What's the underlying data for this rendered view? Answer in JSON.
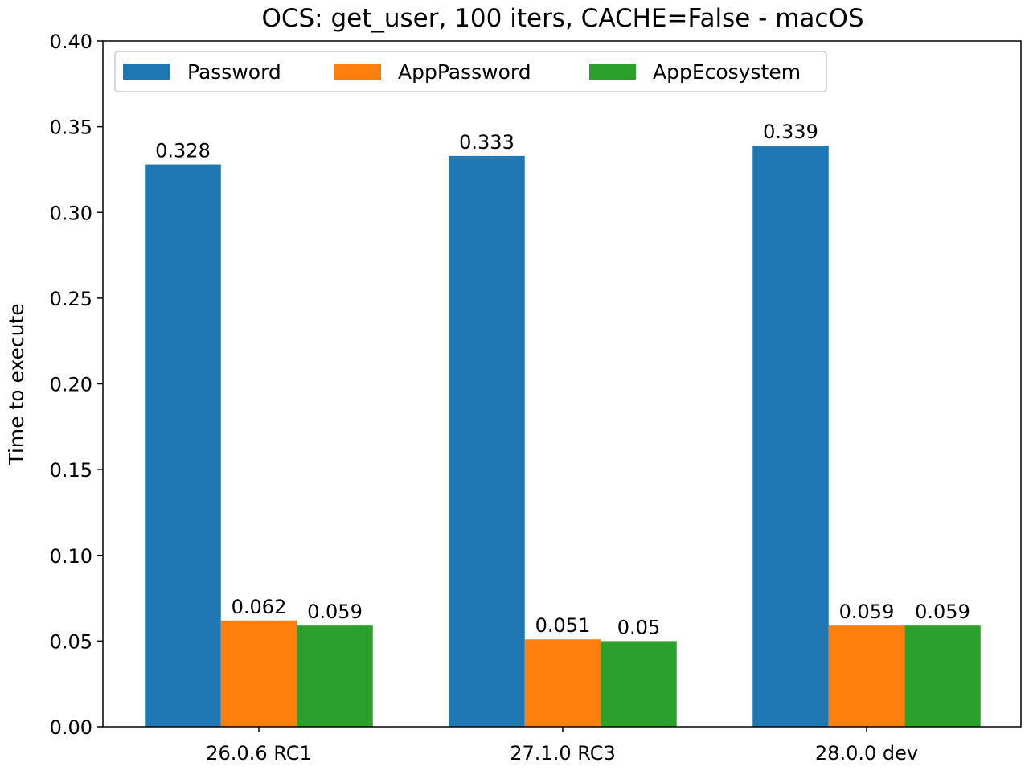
{
  "chart_data": {
    "type": "bar",
    "title": "OCS: get_user, 100 iters, CACHE=False - macOS",
    "xlabel": "",
    "ylabel": "Time to execute",
    "categories": [
      "26.0.6 RC1",
      "27.1.0 RC3",
      "28.0.0 dev"
    ],
    "series": [
      {
        "name": "Password",
        "color": "#1f77b4",
        "values": [
          0.328,
          0.333,
          0.339
        ]
      },
      {
        "name": "AppPassword",
        "color": "#ff7f0e",
        "values": [
          0.062,
          0.051,
          0.059
        ]
      },
      {
        "name": "AppEcosystem",
        "color": "#2ca02c",
        "values": [
          0.059,
          0.05,
          0.059
        ]
      }
    ],
    "ylim": [
      0,
      0.4
    ],
    "yticks": [
      "0.00",
      "0.05",
      "0.10",
      "0.15",
      "0.20",
      "0.25",
      "0.30",
      "0.35",
      "0.40"
    ],
    "legend": "top-left",
    "grid": false
  }
}
